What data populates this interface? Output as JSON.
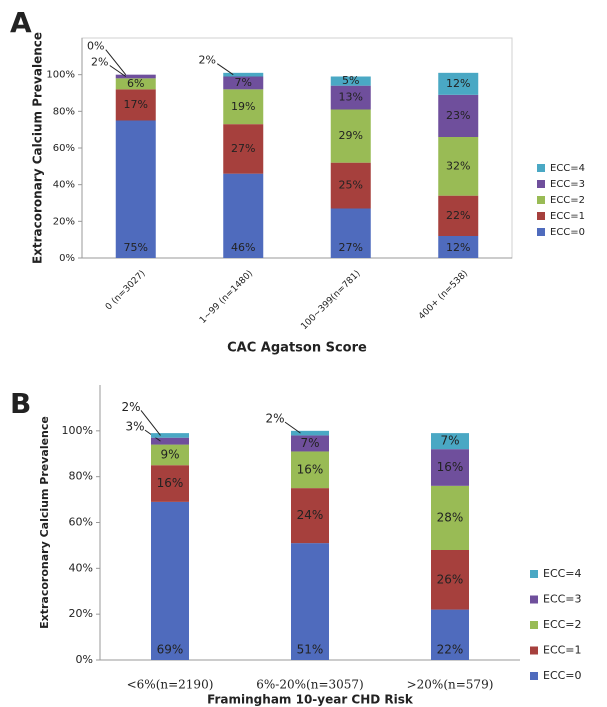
{
  "chart_data": [
    {
      "type": "stacked_bar",
      "panel": "A",
      "ylabel": "Extracoronary Calcium Prevalence",
      "xlabel": "CAC Agatson Score",
      "categories": [
        "0 (n=3027)",
        "1~99 (n=1480)",
        "100~399(n=781)",
        "400+ (n=538)"
      ],
      "series": [
        {
          "name": "ECC=0",
          "color": "#4f6bbd",
          "values": [
            75,
            46,
            27,
            12
          ],
          "value_labels": [
            "75%",
            "46%",
            "27%",
            "12%"
          ]
        },
        {
          "name": "ECC=1",
          "color": "#a6403d",
          "values": [
            17,
            27,
            25,
            22
          ],
          "value_labels": [
            "17%",
            "27%",
            "25%",
            "22%"
          ]
        },
        {
          "name": "ECC=2",
          "color": "#99bb55",
          "values": [
            6,
            19,
            29,
            32
          ],
          "value_labels": [
            "6%",
            "19%",
            "29%",
            "32%"
          ]
        },
        {
          "name": "ECC=3",
          "color": "#6f4f9c",
          "values": [
            2,
            7,
            13,
            23
          ],
          "value_labels": [
            "2%",
            "7%",
            "13%",
            "23%"
          ]
        },
        {
          "name": "ECC=4",
          "color": "#4aa8c4",
          "values": [
            0,
            2,
            5,
            12
          ],
          "value_labels": [
            "0%",
            "2%",
            "5%",
            "12%"
          ]
        }
      ],
      "ylim": [
        0,
        120
      ],
      "yticks": [
        {
          "value": 0,
          "label": "0%"
        },
        {
          "value": 20,
          "label": "20%"
        },
        {
          "value": 40,
          "label": "40%"
        },
        {
          "value": 60,
          "label": "60%"
        },
        {
          "value": 80,
          "label": "80%"
        },
        {
          "value": 100,
          "label": "100%"
        }
      ],
      "grid": false,
      "legend": "right"
    },
    {
      "type": "stacked_bar",
      "panel": "B",
      "ylabel": "Extracoronary Calcium Prevalence",
      "xlabel": "Framingham 10-year CHD Risk",
      "categories": [
        "<6%(n=2190)",
        "6%-20%(n=3057)",
        ">20%(n=579)"
      ],
      "series": [
        {
          "name": "ECC=0",
          "color": "#4f6bbd",
          "values": [
            69,
            51,
            22
          ],
          "value_labels": [
            "69%",
            "51%",
            "22%"
          ]
        },
        {
          "name": "ECC=1",
          "color": "#a6403d",
          "values": [
            16,
            24,
            26
          ],
          "value_labels": [
            "16%",
            "24%",
            "26%"
          ]
        },
        {
          "name": "ECC=2",
          "color": "#99bb55",
          "values": [
            9,
            16,
            28
          ],
          "value_labels": [
            "9%",
            "16%",
            "28%"
          ]
        },
        {
          "name": "ECC=3",
          "color": "#6f4f9c",
          "values": [
            3,
            7,
            16
          ],
          "value_labels": [
            "3%",
            "7%",
            "16%"
          ]
        },
        {
          "name": "ECC=4",
          "color": "#4aa8c4",
          "values": [
            2,
            2,
            7
          ],
          "value_labels": [
            "2%",
            "2%",
            "7%"
          ]
        }
      ],
      "ylim": [
        0,
        120
      ],
      "yticks": [
        {
          "value": 0,
          "label": "0%"
        },
        {
          "value": 20,
          "label": "20%"
        },
        {
          "value": 40,
          "label": "40%"
        },
        {
          "value": 60,
          "label": "60%"
        },
        {
          "value": 80,
          "label": "80%"
        },
        {
          "value": 100,
          "label": "100%"
        }
      ],
      "grid": false,
      "legend": "right"
    }
  ]
}
